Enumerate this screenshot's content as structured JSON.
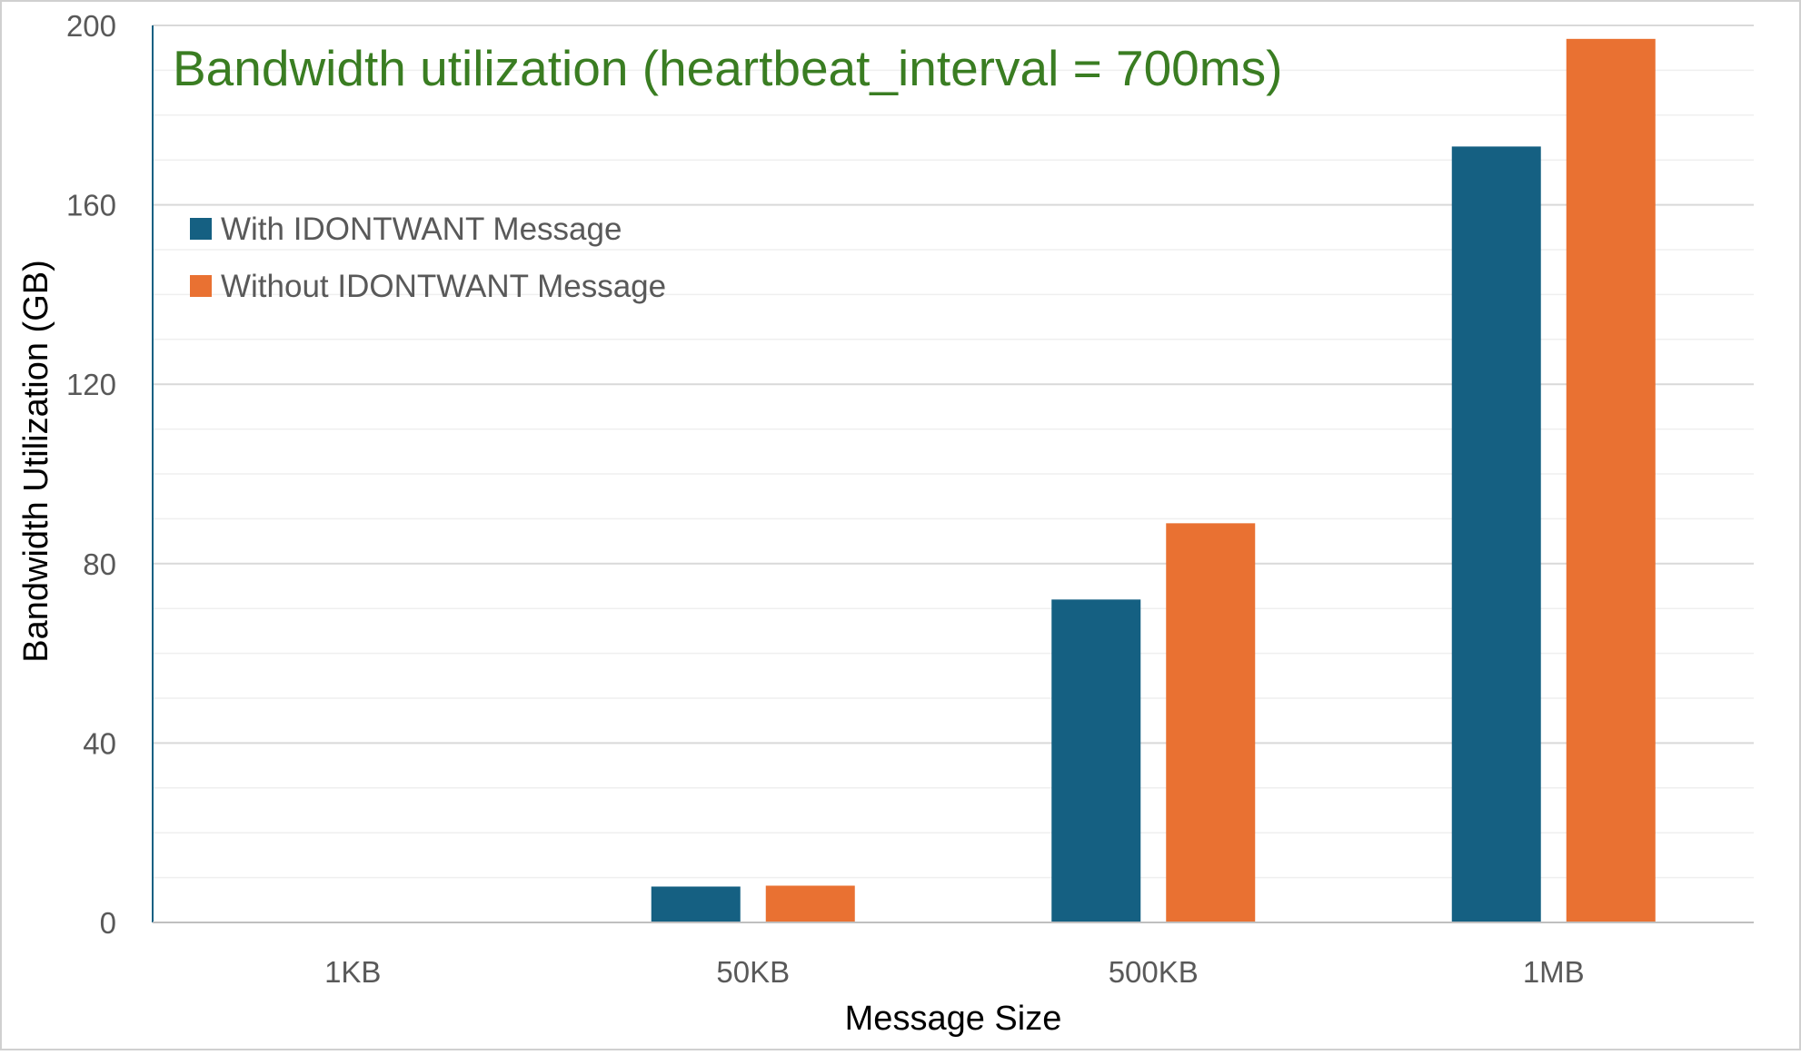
{
  "chart_data": {
    "type": "bar",
    "title": "Bandwidth utilization (heartbeat_interval = 700ms)",
    "xlabel": "Message Size",
    "ylabel": "Bandwidth Utilization (GB)",
    "categories": [
      "1KB",
      "50KB",
      "500KB",
      "1MB"
    ],
    "series": [
      {
        "name": "With IDONTWANT Message",
        "values": [
          0.2,
          8,
          72,
          173
        ]
      },
      {
        "name": "Without IDONTWANT Message",
        "values": [
          0.2,
          8.2,
          89,
          197
        ]
      }
    ],
    "ylim": [
      0,
      200
    ],
    "yticks": [
      "0",
      "40",
      "80",
      "120",
      "160",
      "200"
    ],
    "grid": true,
    "legend_position": "top-left",
    "colors": {
      "series": [
        "#156082",
        "#E97132"
      ],
      "title": "#3A7D22",
      "grid": "#D9D9D9",
      "axis": "#156082"
    }
  }
}
